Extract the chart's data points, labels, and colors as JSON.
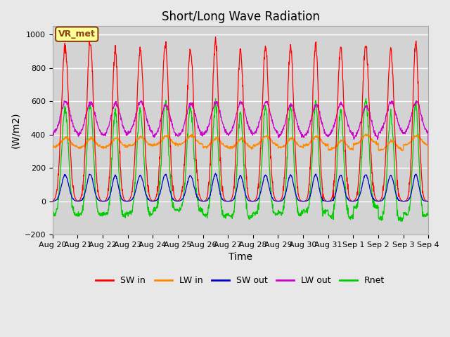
{
  "title": "Short/Long Wave Radiation",
  "ylabel": "(W/m2)",
  "xlabel": "Time",
  "station_label": "VR_met",
  "ylim": [
    -200,
    1050
  ],
  "xlim": [
    0,
    360
  ],
  "background_color": "#e8e8e8",
  "plot_bg_color": "#d3d3d3",
  "grid_color": "white",
  "colors": {
    "SW_in": "#ff0000",
    "LW_in": "#ff8800",
    "SW_out": "#0000cc",
    "LW_out": "#cc00cc",
    "Rnet": "#00cc00"
  },
  "xtick_positions": [
    0,
    24,
    48,
    72,
    96,
    120,
    144,
    168,
    192,
    216,
    240,
    264,
    288,
    312,
    336,
    360
  ],
  "xtick_labels": [
    "Aug 20",
    "Aug 21",
    "Aug 22",
    "Aug 23",
    "Aug 24",
    "Aug 25",
    "Aug 26",
    "Aug 27",
    "Aug 28",
    "Aug 29",
    "Aug 30",
    "Aug 31",
    "Sep 1",
    "Sep 2",
    "Sep 3",
    "Sep 4"
  ],
  "title_fontsize": 12,
  "label_fontsize": 10,
  "tick_fontsize": 8
}
